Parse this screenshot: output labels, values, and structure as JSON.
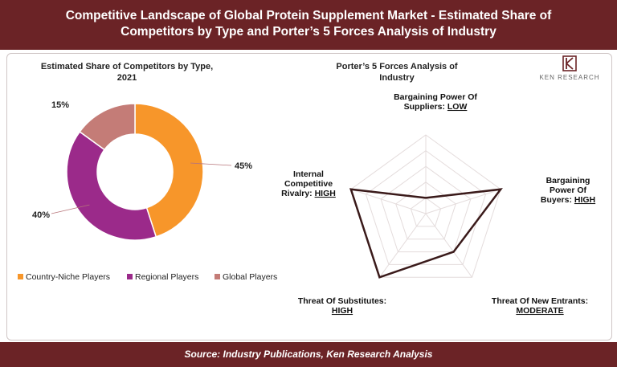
{
  "header": {
    "title_line1": "Competitive Landscape of Global Protein Supplement Market - Estimated Share of",
    "title_line2": "Competitors by Type and Porter’s 5 Forces Analysis of Industry"
  },
  "footer": {
    "source": "Source: Industry Publications, Ken Research Analysis"
  },
  "logo": {
    "text": "KEN RESEARCH",
    "icon": "ken-research-logo-icon"
  },
  "colors": {
    "header_bg": "#6b2326",
    "orange": "#f7962a",
    "purple": "#9b2a8a",
    "rose": "#c47c77",
    "radar_line": "#3a1a1a"
  },
  "chart_data": [
    {
      "type": "pie",
      "title_line1": "Estimated Share of Competitors by Type,",
      "title_line2": "2021",
      "categories": [
        "Country-Niche Players",
        "Regional Players",
        "Global Players"
      ],
      "values": [
        45,
        40,
        15
      ],
      "value_labels": [
        "45%",
        "40%",
        "15%"
      ],
      "legend_position": "bottom",
      "donut": true
    },
    {
      "type": "radar",
      "title_line1": "Porter’s 5 Forces Analysis of",
      "title_line2": "Industry",
      "axes": [
        {
          "name_lines": [
            "Bargaining Power Of",
            "Suppliers:"
          ],
          "rating": "LOW",
          "value": 1
        },
        {
          "name_lines": [
            "Bargaining",
            "Power Of",
            "Buyers:"
          ],
          "rating": "HIGH",
          "value": 5
        },
        {
          "name_lines": [
            "Threat Of New Entrants:"
          ],
          "rating": "MODERATE",
          "value": 3
        },
        {
          "name_lines": [
            "Threat Of Substitutes:"
          ],
          "rating": "HIGH",
          "value": 5
        },
        {
          "name_lines": [
            "Internal",
            "Competitive",
            "Rivalry:"
          ],
          "rating": "HIGH",
          "value": 5
        }
      ],
      "scale_max": 5,
      "grid": true
    }
  ]
}
